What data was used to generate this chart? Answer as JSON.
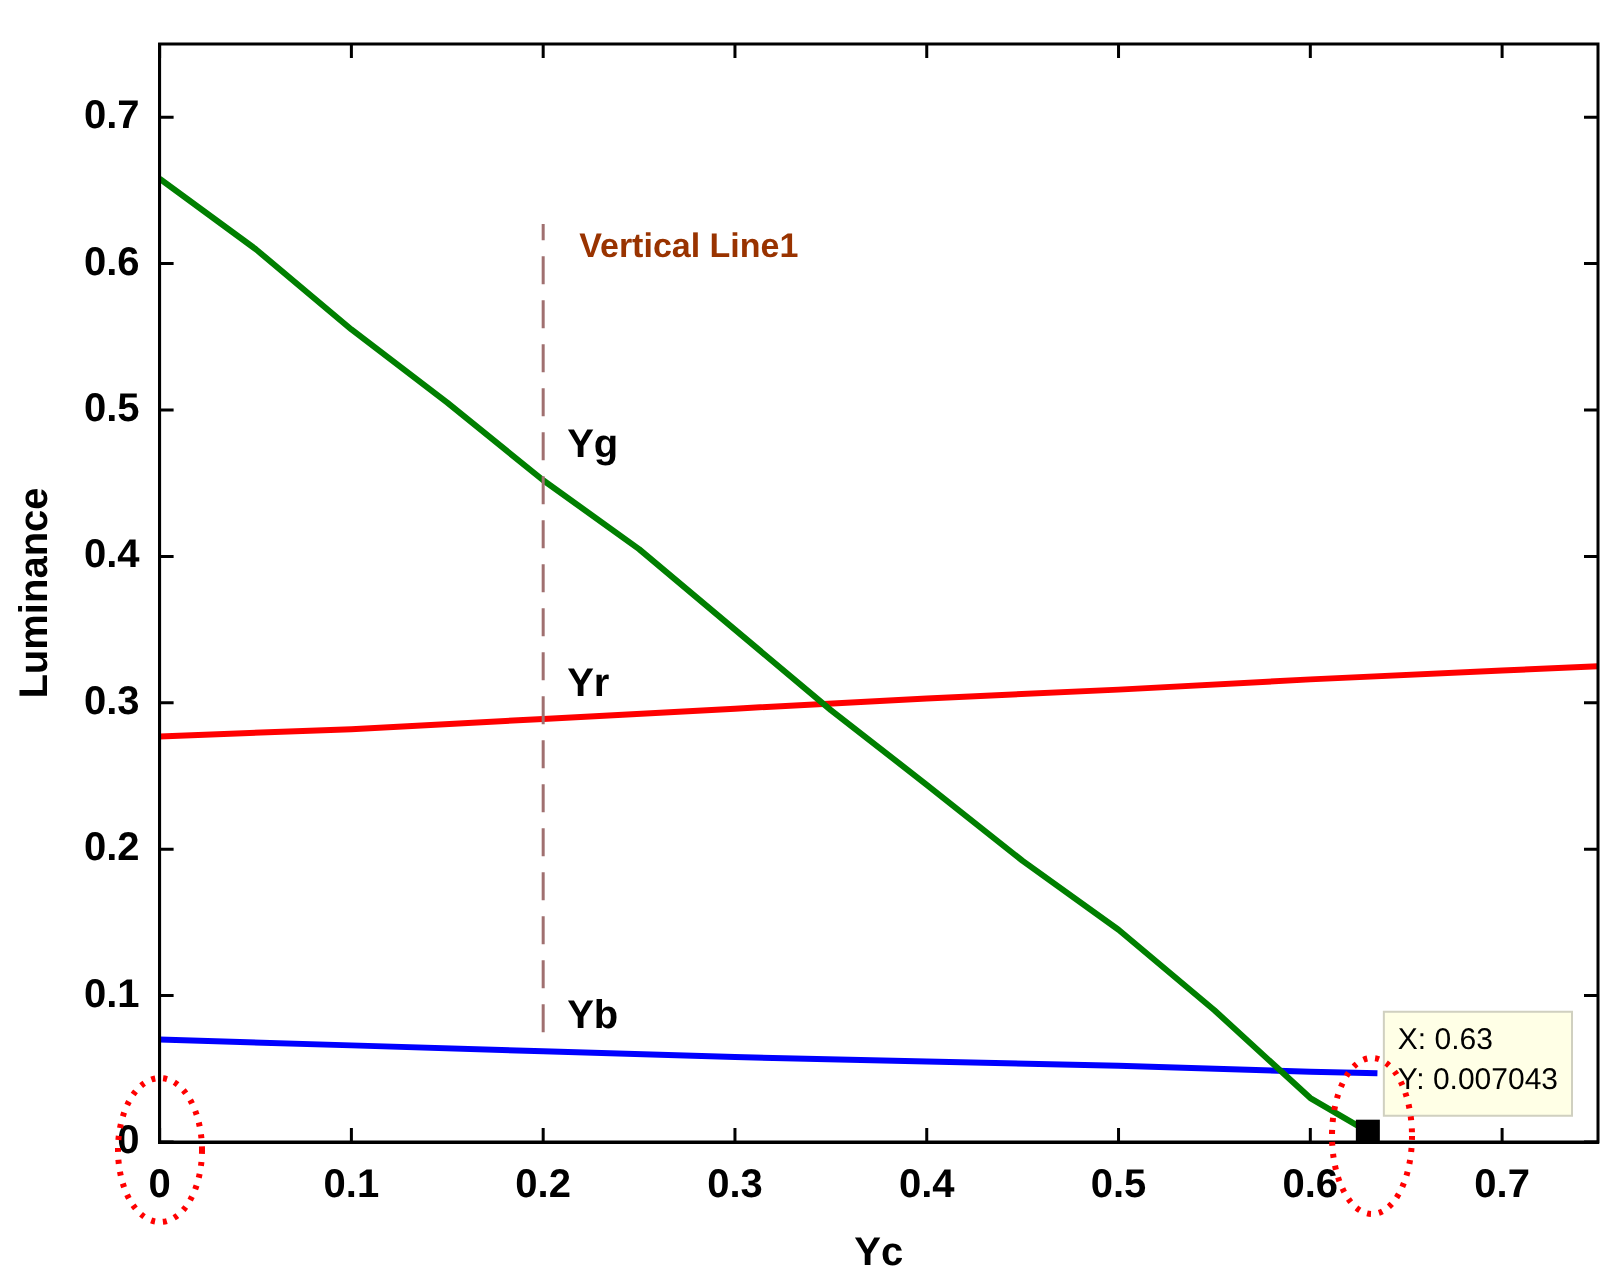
{
  "chart_data": {
    "type": "line",
    "xlabel": "Yc",
    "ylabel": "Luminance",
    "xlim": [
      0,
      0.75
    ],
    "xticks": [
      0,
      0.1,
      0.2,
      0.3,
      0.4,
      0.5,
      0.6,
      0.7
    ],
    "ylim": [
      0,
      0.75
    ],
    "yticks": [
      0,
      0.1,
      0.2,
      0.3,
      0.4,
      0.5,
      0.6,
      0.7
    ],
    "series": [
      {
        "name": "Yg",
        "color": "#007f00",
        "x": [
          0,
          0.05,
          0.1,
          0.15,
          0.2,
          0.25,
          0.3,
          0.35,
          0.4,
          0.45,
          0.5,
          0.55,
          0.6,
          0.63
        ],
        "values": [
          0.658,
          0.61,
          0.555,
          0.505,
          0.452,
          0.405,
          0.35,
          0.295,
          0.244,
          0.192,
          0.145,
          0.09,
          0.03,
          0.007043
        ]
      },
      {
        "name": "Yr",
        "color": "#ff0000",
        "x": [
          0,
          0.1,
          0.2,
          0.3,
          0.4,
          0.5,
          0.6,
          0.7,
          0.75
        ],
        "values": [
          0.277,
          0.282,
          0.289,
          0.296,
          0.303,
          0.309,
          0.316,
          0.322,
          0.325
        ]
      },
      {
        "name": "Yb",
        "color": "#0000ff",
        "x": [
          0,
          0.1,
          0.2,
          0.3,
          0.4,
          0.5,
          0.6,
          0.635
        ],
        "values": [
          0.07,
          0.066,
          0.062,
          0.058,
          0.055,
          0.052,
          0.048,
          0.047
        ]
      }
    ],
    "ref_lines": [
      {
        "axis": "x",
        "value": 0.2,
        "label": "Vertical Line1",
        "color": "#a07070",
        "line_style": "dashed"
      }
    ],
    "annotations": [
      {
        "text": "X: 0.63\nY: 0.007043",
        "x": 0.63,
        "y": 0.007043
      }
    ],
    "grid": false,
    "legend": false,
    "marker": "none",
    "line_style": "solid"
  }
}
